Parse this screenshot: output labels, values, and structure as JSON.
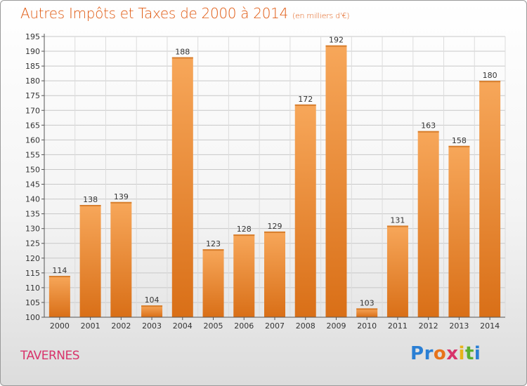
{
  "header": {
    "title": "Autres Impôts et Taxes de 2000 à 2014",
    "unit": "(en milliers d'€)"
  },
  "footer": {
    "place": "TAVERNES",
    "logo": {
      "letters": [
        "P",
        "r",
        "o",
        "x",
        "i",
        "t",
        "i"
      ],
      "colors": [
        "#2a7fd4",
        "#2a7fd4",
        "#e8731a",
        "#d8336b",
        "#e8b31a",
        "#5cb030",
        "#2a7fd4"
      ]
    }
  },
  "colors": {
    "bar_light": "#f7a75a",
    "bar_dark": "#d96f17",
    "grid": "#c8c8c8"
  },
  "chart_data": {
    "type": "bar",
    "title": "Autres Impôts et Taxes de 2000 à 2014",
    "categories": [
      "2000",
      "2001",
      "2002",
      "2003",
      "2004",
      "2005",
      "2006",
      "2007",
      "2008",
      "2009",
      "2010",
      "2011",
      "2012",
      "2013",
      "2014"
    ],
    "values": [
      114,
      138,
      139,
      104,
      188,
      123,
      128,
      129,
      172,
      192,
      103,
      131,
      163,
      158,
      180
    ],
    "ylim": [
      100,
      195
    ],
    "yticks": [
      100,
      105,
      110,
      115,
      120,
      125,
      130,
      135,
      140,
      145,
      150,
      155,
      160,
      165,
      170,
      175,
      180,
      185,
      190,
      195
    ],
    "grid": true
  }
}
